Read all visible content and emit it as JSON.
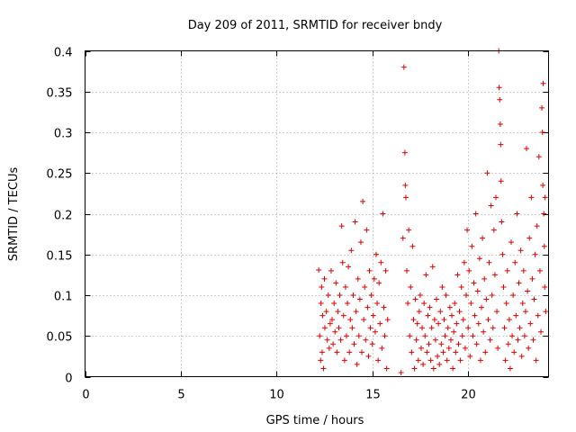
{
  "chart_data": {
    "type": "scatter",
    "title": "Day 209 of 2011, SRMTID for receiver bndy",
    "xlabel": "GPS time / hours",
    "ylabel": "SRMTID / TECUs",
    "xlim": [
      0,
      24.2
    ],
    "ylim": [
      0,
      0.4
    ],
    "xticks": [
      0,
      5,
      10,
      15,
      20
    ],
    "yticks": [
      0,
      0.05,
      0.1,
      0.15,
      0.2,
      0.25,
      0.3,
      0.35,
      0.4
    ],
    "xtick_labels": [
      "0",
      "5",
      "10",
      "15",
      "20"
    ],
    "ytick_labels": [
      "0",
      "0.05",
      "0.1",
      "0.15",
      "0.2",
      "0.25",
      "0.3",
      "0.35",
      "0.4"
    ],
    "grid": true,
    "marker": "+",
    "color": "#dd0000",
    "series": [
      {
        "name": "SRMTID",
        "points": [
          [
            12.2,
            0.131
          ],
          [
            12.25,
            0.05
          ],
          [
            12.3,
            0.02
          ],
          [
            12.32,
            0.09
          ],
          [
            12.35,
            0.11
          ],
          [
            12.38,
            0.03
          ],
          [
            12.4,
            0.075
          ],
          [
            12.45,
            0.01
          ],
          [
            12.5,
            0.12
          ],
          [
            12.52,
            0.06
          ],
          [
            12.6,
            0.08
          ],
          [
            12.65,
            0.045
          ],
          [
            12.7,
            0.1
          ],
          [
            12.75,
            0.035
          ],
          [
            12.8,
            0.065
          ],
          [
            12.85,
            0.13
          ],
          [
            12.9,
            0.07
          ],
          [
            12.95,
            0.04
          ],
          [
            13.0,
            0.09
          ],
          [
            13.05,
            0.055
          ],
          [
            13.1,
            0.115
          ],
          [
            13.15,
            0.03
          ],
          [
            13.2,
            0.08
          ],
          [
            13.25,
            0.06
          ],
          [
            13.3,
            0.1
          ],
          [
            13.35,
            0.045
          ],
          [
            13.4,
            0.185
          ],
          [
            13.45,
            0.14
          ],
          [
            13.5,
            0.075
          ],
          [
            13.55,
            0.02
          ],
          [
            13.6,
            0.11
          ],
          [
            13.65,
            0.05
          ],
          [
            13.7,
            0.09
          ],
          [
            13.75,
            0.135
          ],
          [
            13.8,
            0.03
          ],
          [
            13.85,
            0.07
          ],
          [
            13.9,
            0.155
          ],
          [
            13.95,
            0.06
          ],
          [
            14.0,
            0.1
          ],
          [
            14.05,
            0.04
          ],
          [
            14.1,
            0.19
          ],
          [
            14.15,
            0.08
          ],
          [
            14.2,
            0.015
          ],
          [
            14.25,
            0.12
          ],
          [
            14.3,
            0.05
          ],
          [
            14.35,
            0.095
          ],
          [
            14.4,
            0.165
          ],
          [
            14.45,
            0.03
          ],
          [
            14.5,
            0.215
          ],
          [
            14.55,
            0.07
          ],
          [
            14.6,
            0.11
          ],
          [
            14.65,
            0.045
          ],
          [
            14.7,
            0.18
          ],
          [
            14.75,
            0.085
          ],
          [
            14.8,
            0.025
          ],
          [
            14.85,
            0.13
          ],
          [
            14.9,
            0.06
          ],
          [
            14.95,
            0.1
          ],
          [
            15.0,
            0.04
          ],
          [
            15.05,
            0.075
          ],
          [
            15.1,
            0.12
          ],
          [
            15.15,
            0.055
          ],
          [
            15.2,
            0.15
          ],
          [
            15.25,
            0.09
          ],
          [
            15.3,
            0.02
          ],
          [
            15.35,
            0.115
          ],
          [
            15.4,
            0.065
          ],
          [
            15.45,
            0.14
          ],
          [
            15.5,
            0.035
          ],
          [
            15.55,
            0.2
          ],
          [
            15.6,
            0.085
          ],
          [
            15.65,
            0.05
          ],
          [
            15.7,
            0.13
          ],
          [
            15.75,
            0.01
          ],
          [
            15.8,
            0.07
          ],
          [
            16.5,
            0.005
          ],
          [
            16.6,
            0.17
          ],
          [
            16.65,
            0.38
          ],
          [
            16.7,
            0.275
          ],
          [
            16.72,
            0.235
          ],
          [
            16.75,
            0.22
          ],
          [
            16.8,
            0.13
          ],
          [
            16.85,
            0.09
          ],
          [
            16.9,
            0.18
          ],
          [
            16.95,
            0.05
          ],
          [
            17.0,
            0.11
          ],
          [
            17.05,
            0.03
          ],
          [
            17.1,
            0.16
          ],
          [
            17.15,
            0.07
          ],
          [
            17.2,
            0.01
          ],
          [
            17.25,
            0.095
          ],
          [
            17.3,
            0.045
          ],
          [
            17.35,
            0.065
          ],
          [
            17.4,
            0.02
          ],
          [
            17.45,
            0.08
          ],
          [
            17.5,
            0.1
          ],
          [
            17.55,
            0.035
          ],
          [
            17.6,
            0.06
          ],
          [
            17.65,
            0.015
          ],
          [
            17.7,
            0.09
          ],
          [
            17.75,
            0.05
          ],
          [
            17.8,
            0.125
          ],
          [
            17.85,
            0.03
          ],
          [
            17.9,
            0.075
          ],
          [
            17.95,
            0.04
          ],
          [
            18.0,
            0.085
          ],
          [
            18.05,
            0.02
          ],
          [
            18.1,
            0.06
          ],
          [
            18.15,
            0.135
          ],
          [
            18.2,
            0.01
          ],
          [
            18.25,
            0.07
          ],
          [
            18.3,
            0.045
          ],
          [
            18.35,
            0.095
          ],
          [
            18.4,
            0.025
          ],
          [
            18.45,
            0.065
          ],
          [
            18.5,
            0.015
          ],
          [
            18.55,
            0.08
          ],
          [
            18.6,
            0.04
          ],
          [
            18.65,
            0.11
          ],
          [
            18.7,
            0.03
          ],
          [
            18.75,
            0.07
          ],
          [
            18.8,
            0.05
          ],
          [
            18.85,
            0.1
          ],
          [
            18.9,
            0.02
          ],
          [
            18.95,
            0.06
          ],
          [
            19.0,
            0.035
          ],
          [
            19.05,
            0.085
          ],
          [
            19.1,
            0.045
          ],
          [
            19.15,
            0.075
          ],
          [
            19.2,
            0.01
          ],
          [
            19.25,
            0.055
          ],
          [
            19.3,
            0.09
          ],
          [
            19.35,
            0.03
          ],
          [
            19.4,
            0.065
          ],
          [
            19.45,
            0.125
          ],
          [
            19.5,
            0.04
          ],
          [
            19.55,
            0.08
          ],
          [
            19.6,
            0.02
          ],
          [
            19.65,
            0.11
          ],
          [
            19.7,
            0.05
          ],
          [
            19.75,
            0.07
          ],
          [
            19.8,
            0.14
          ],
          [
            19.85,
            0.035
          ],
          [
            19.9,
            0.1
          ],
          [
            19.95,
            0.18
          ],
          [
            20.0,
            0.06
          ],
          [
            20.05,
            0.13
          ],
          [
            20.1,
            0.025
          ],
          [
            20.15,
            0.09
          ],
          [
            20.2,
            0.16
          ],
          [
            20.25,
            0.05
          ],
          [
            20.3,
            0.115
          ],
          [
            20.35,
            0.075
          ],
          [
            20.4,
            0.2
          ],
          [
            20.45,
            0.04
          ],
          [
            20.5,
            0.105
          ],
          [
            20.55,
            0.065
          ],
          [
            20.6,
            0.145
          ],
          [
            20.65,
            0.02
          ],
          [
            20.7,
            0.085
          ],
          [
            20.75,
            0.17
          ],
          [
            20.8,
            0.055
          ],
          [
            20.85,
            0.12
          ],
          [
            20.9,
            0.03
          ],
          [
            20.95,
            0.095
          ],
          [
            21.0,
            0.25
          ],
          [
            21.05,
            0.07
          ],
          [
            21.1,
            0.14
          ],
          [
            21.15,
            0.045
          ],
          [
            21.2,
            0.21
          ],
          [
            21.25,
            0.1
          ],
          [
            21.3,
            0.06
          ],
          [
            21.35,
            0.18
          ],
          [
            21.4,
            0.125
          ],
          [
            21.45,
            0.22
          ],
          [
            21.5,
            0.08
          ],
          [
            21.55,
            0.035
          ],
          [
            21.6,
            0.4
          ],
          [
            21.62,
            0.355
          ],
          [
            21.65,
            0.34
          ],
          [
            21.68,
            0.31
          ],
          [
            21.7,
            0.285
          ],
          [
            21.72,
            0.24
          ],
          [
            21.75,
            0.19
          ],
          [
            21.8,
            0.15
          ],
          [
            21.85,
            0.11
          ],
          [
            21.9,
            0.06
          ],
          [
            21.95,
            0.02
          ],
          [
            22.0,
            0.09
          ],
          [
            22.05,
            0.13
          ],
          [
            22.1,
            0.04
          ],
          [
            22.15,
            0.07
          ],
          [
            22.2,
            0.01
          ],
          [
            22.25,
            0.165
          ],
          [
            22.3,
            0.05
          ],
          [
            22.35,
            0.1
          ],
          [
            22.4,
            0.03
          ],
          [
            22.45,
            0.14
          ],
          [
            22.5,
            0.075
          ],
          [
            22.55,
            0.2
          ],
          [
            22.6,
            0.045
          ],
          [
            22.65,
            0.115
          ],
          [
            22.7,
            0.06
          ],
          [
            22.75,
            0.155
          ],
          [
            22.8,
            0.025
          ],
          [
            22.85,
            0.09
          ],
          [
            22.9,
            0.13
          ],
          [
            22.95,
            0.05
          ],
          [
            23.0,
            0.08
          ],
          [
            23.05,
            0.28
          ],
          [
            23.1,
            0.105
          ],
          [
            23.15,
            0.035
          ],
          [
            23.2,
            0.17
          ],
          [
            23.25,
            0.065
          ],
          [
            23.3,
            0.22
          ],
          [
            23.35,
            0.12
          ],
          [
            23.4,
            0.045
          ],
          [
            23.45,
            0.095
          ],
          [
            23.5,
            0.15
          ],
          [
            23.55,
            0.02
          ],
          [
            23.6,
            0.185
          ],
          [
            23.65,
            0.075
          ],
          [
            23.7,
            0.27
          ],
          [
            23.75,
            0.13
          ],
          [
            23.8,
            0.055
          ],
          [
            23.85,
            0.33
          ],
          [
            23.88,
            0.3
          ],
          [
            23.9,
            0.235
          ],
          [
            23.92,
            0.36
          ],
          [
            23.95,
            0.2
          ],
          [
            23.98,
            0.16
          ],
          [
            24.0,
            0.11
          ],
          [
            24.02,
            0.22
          ],
          [
            24.05,
            0.08
          ]
        ]
      }
    ]
  }
}
